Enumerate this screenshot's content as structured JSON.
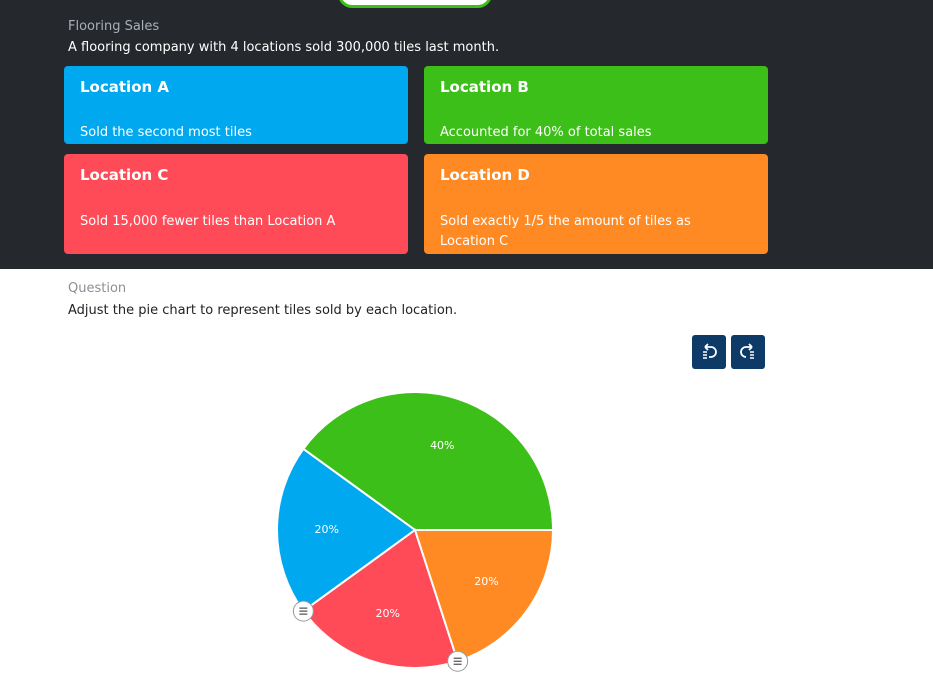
{
  "header": {
    "title": "Flooring Sales",
    "subtitle": "A flooring company with 4 locations sold 300,000 tiles last month."
  },
  "cards": [
    {
      "title": "Location A",
      "text": "Sold the second most tiles"
    },
    {
      "title": "Location B",
      "text": "Accounted for 40% of total sales"
    },
    {
      "title": "Location C",
      "text": "Sold 15,000 fewer tiles than Location A"
    },
    {
      "title": "Location D",
      "text": "Sold exactly 1/5 the amount of tiles as Location C"
    }
  ],
  "question": {
    "label": "Question",
    "text": "Adjust the pie chart to represent tiles sold by each location."
  },
  "chart_data": {
    "type": "pie",
    "values": [
      40,
      20,
      20,
      20
    ],
    "value_labels": [
      "40%",
      "20%",
      "20%",
      "20%"
    ],
    "colors": [
      "#3dbf1a",
      "#00a8f0",
      "#ff4b58",
      "#ff8a23"
    ]
  }
}
